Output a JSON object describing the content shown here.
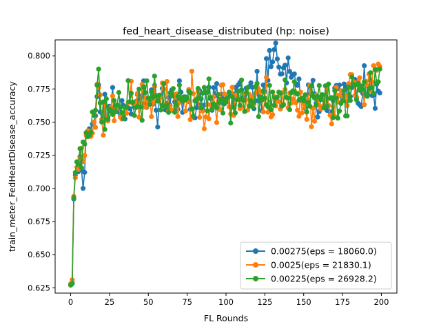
{
  "chart_data": {
    "type": "line",
    "title": "fed_heart_disease_distributed (hp: noise)",
    "xlabel": "FL Rounds",
    "ylabel": "train_meter_FedHeartDisease_accuracy",
    "xlim": [
      -10,
      210
    ],
    "ylim": [
      0.621,
      0.812
    ],
    "xticks": [
      0,
      25,
      50,
      75,
      100,
      125,
      150,
      175,
      200
    ],
    "yticks": [
      0.625,
      0.65,
      0.675,
      0.7,
      0.725,
      0.75,
      0.775,
      0.8
    ],
    "ytick_labels": [
      "0.625",
      "0.650",
      "0.675",
      "0.700",
      "0.725",
      "0.750",
      "0.775",
      "0.800"
    ],
    "grid": false,
    "legend_position": "lower-right",
    "marker": "circle",
    "series": [
      {
        "name": "0.00275(eps = 18060.0)",
        "color": "#1f77b4",
        "seed": 11,
        "anchors": [
          [
            0,
            0.628
          ],
          [
            1,
            0.629
          ],
          [
            2,
            0.692
          ],
          [
            3,
            0.71
          ],
          [
            4,
            0.72
          ],
          [
            6,
            0.724
          ],
          [
            8,
            0.7
          ],
          [
            10,
            0.742
          ],
          [
            12,
            0.745
          ],
          [
            15,
            0.75
          ],
          [
            18,
            0.778
          ],
          [
            20,
            0.752
          ],
          [
            25,
            0.762
          ],
          [
            30,
            0.763
          ],
          [
            40,
            0.765
          ],
          [
            50,
            0.767
          ],
          [
            75,
            0.766
          ],
          [
            100,
            0.767
          ],
          [
            125,
            0.773
          ],
          [
            128,
            0.804
          ],
          [
            150,
            0.768
          ],
          [
            175,
            0.77
          ],
          [
            199,
            0.772
          ]
        ],
        "noise": 0.013
      },
      {
        "name": "0.0025(eps = 21830.1)",
        "color": "#ff7f0e",
        "seed": 23,
        "anchors": [
          [
            0,
            0.628
          ],
          [
            1,
            0.631
          ],
          [
            2,
            0.694
          ],
          [
            3,
            0.708
          ],
          [
            4,
            0.716
          ],
          [
            6,
            0.723
          ],
          [
            8,
            0.72
          ],
          [
            10,
            0.74
          ],
          [
            12,
            0.743
          ],
          [
            15,
            0.75
          ],
          [
            18,
            0.776
          ],
          [
            20,
            0.752
          ],
          [
            25,
            0.76
          ],
          [
            30,
            0.762
          ],
          [
            40,
            0.764
          ],
          [
            50,
            0.766
          ],
          [
            75,
            0.766
          ],
          [
            100,
            0.766
          ],
          [
            125,
            0.768
          ],
          [
            150,
            0.764
          ],
          [
            175,
            0.766
          ],
          [
            199,
            0.792
          ]
        ],
        "noise": 0.014
      },
      {
        "name": "0.00225(eps = 26928.2)",
        "color": "#2ca02c",
        "seed": 37,
        "anchors": [
          [
            0,
            0.627
          ],
          [
            1,
            0.628
          ],
          [
            2,
            0.693
          ],
          [
            3,
            0.712
          ],
          [
            4,
            0.72
          ],
          [
            6,
            0.73
          ],
          [
            8,
            0.735
          ],
          [
            10,
            0.742
          ],
          [
            12,
            0.74
          ],
          [
            15,
            0.755
          ],
          [
            18,
            0.79
          ],
          [
            20,
            0.75
          ],
          [
            25,
            0.76
          ],
          [
            30,
            0.763
          ],
          [
            40,
            0.765
          ],
          [
            50,
            0.768
          ],
          [
            75,
            0.768
          ],
          [
            100,
            0.765
          ],
          [
            125,
            0.768
          ],
          [
            150,
            0.766
          ],
          [
            175,
            0.766
          ],
          [
            199,
            0.79
          ]
        ],
        "noise": 0.013
      }
    ]
  }
}
